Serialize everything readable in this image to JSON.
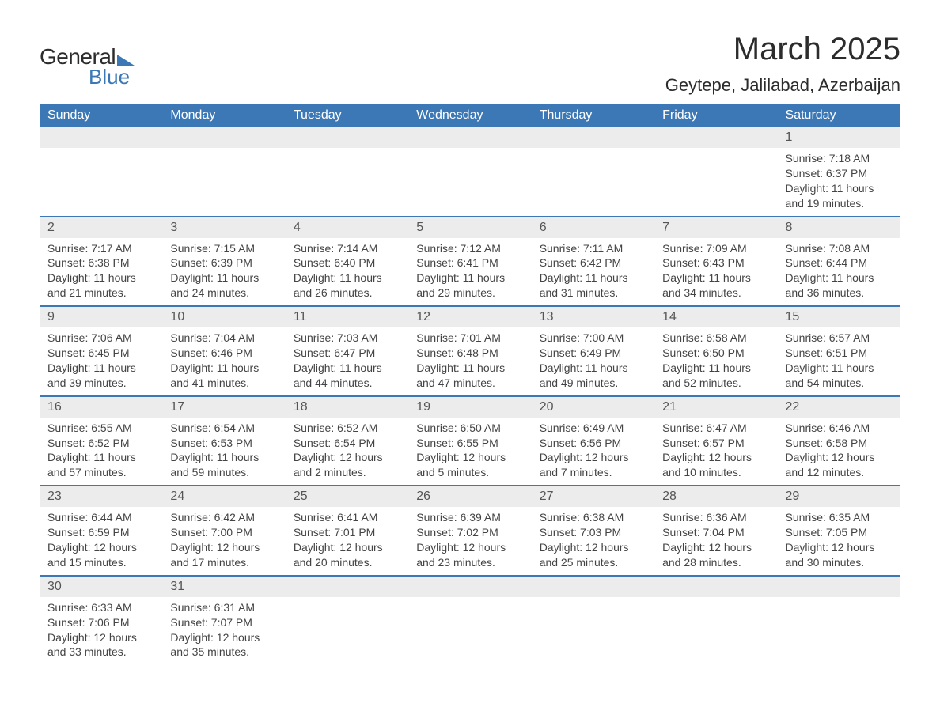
{
  "logo": {
    "word1": "General",
    "word2": "Blue"
  },
  "title": {
    "month": "March 2025",
    "location": "Geytepe, Jalilabad, Azerbaijan"
  },
  "colors": {
    "header_bg": "#3b78b5",
    "header_text": "#ffffff",
    "daynum_bg": "#ececec",
    "row_divider": "#3b78b5",
    "body_text": "#444444",
    "background": "#ffffff"
  },
  "dayHeaders": [
    "Sunday",
    "Monday",
    "Tuesday",
    "Wednesday",
    "Thursday",
    "Friday",
    "Saturday"
  ],
  "weeks": [
    [
      null,
      null,
      null,
      null,
      null,
      null,
      {
        "n": "1",
        "sr": "Sunrise: 7:18 AM",
        "ss": "Sunset: 6:37 PM",
        "d1": "Daylight: 11 hours",
        "d2": "and 19 minutes."
      }
    ],
    [
      {
        "n": "2",
        "sr": "Sunrise: 7:17 AM",
        "ss": "Sunset: 6:38 PM",
        "d1": "Daylight: 11 hours",
        "d2": "and 21 minutes."
      },
      {
        "n": "3",
        "sr": "Sunrise: 7:15 AM",
        "ss": "Sunset: 6:39 PM",
        "d1": "Daylight: 11 hours",
        "d2": "and 24 minutes."
      },
      {
        "n": "4",
        "sr": "Sunrise: 7:14 AM",
        "ss": "Sunset: 6:40 PM",
        "d1": "Daylight: 11 hours",
        "d2": "and 26 minutes."
      },
      {
        "n": "5",
        "sr": "Sunrise: 7:12 AM",
        "ss": "Sunset: 6:41 PM",
        "d1": "Daylight: 11 hours",
        "d2": "and 29 minutes."
      },
      {
        "n": "6",
        "sr": "Sunrise: 7:11 AM",
        "ss": "Sunset: 6:42 PM",
        "d1": "Daylight: 11 hours",
        "d2": "and 31 minutes."
      },
      {
        "n": "7",
        "sr": "Sunrise: 7:09 AM",
        "ss": "Sunset: 6:43 PM",
        "d1": "Daylight: 11 hours",
        "d2": "and 34 minutes."
      },
      {
        "n": "8",
        "sr": "Sunrise: 7:08 AM",
        "ss": "Sunset: 6:44 PM",
        "d1": "Daylight: 11 hours",
        "d2": "and 36 minutes."
      }
    ],
    [
      {
        "n": "9",
        "sr": "Sunrise: 7:06 AM",
        "ss": "Sunset: 6:45 PM",
        "d1": "Daylight: 11 hours",
        "d2": "and 39 minutes."
      },
      {
        "n": "10",
        "sr": "Sunrise: 7:04 AM",
        "ss": "Sunset: 6:46 PM",
        "d1": "Daylight: 11 hours",
        "d2": "and 41 minutes."
      },
      {
        "n": "11",
        "sr": "Sunrise: 7:03 AM",
        "ss": "Sunset: 6:47 PM",
        "d1": "Daylight: 11 hours",
        "d2": "and 44 minutes."
      },
      {
        "n": "12",
        "sr": "Sunrise: 7:01 AM",
        "ss": "Sunset: 6:48 PM",
        "d1": "Daylight: 11 hours",
        "d2": "and 47 minutes."
      },
      {
        "n": "13",
        "sr": "Sunrise: 7:00 AM",
        "ss": "Sunset: 6:49 PM",
        "d1": "Daylight: 11 hours",
        "d2": "and 49 minutes."
      },
      {
        "n": "14",
        "sr": "Sunrise: 6:58 AM",
        "ss": "Sunset: 6:50 PM",
        "d1": "Daylight: 11 hours",
        "d2": "and 52 minutes."
      },
      {
        "n": "15",
        "sr": "Sunrise: 6:57 AM",
        "ss": "Sunset: 6:51 PM",
        "d1": "Daylight: 11 hours",
        "d2": "and 54 minutes."
      }
    ],
    [
      {
        "n": "16",
        "sr": "Sunrise: 6:55 AM",
        "ss": "Sunset: 6:52 PM",
        "d1": "Daylight: 11 hours",
        "d2": "and 57 minutes."
      },
      {
        "n": "17",
        "sr": "Sunrise: 6:54 AM",
        "ss": "Sunset: 6:53 PM",
        "d1": "Daylight: 11 hours",
        "d2": "and 59 minutes."
      },
      {
        "n": "18",
        "sr": "Sunrise: 6:52 AM",
        "ss": "Sunset: 6:54 PM",
        "d1": "Daylight: 12 hours",
        "d2": "and 2 minutes."
      },
      {
        "n": "19",
        "sr": "Sunrise: 6:50 AM",
        "ss": "Sunset: 6:55 PM",
        "d1": "Daylight: 12 hours",
        "d2": "and 5 minutes."
      },
      {
        "n": "20",
        "sr": "Sunrise: 6:49 AM",
        "ss": "Sunset: 6:56 PM",
        "d1": "Daylight: 12 hours",
        "d2": "and 7 minutes."
      },
      {
        "n": "21",
        "sr": "Sunrise: 6:47 AM",
        "ss": "Sunset: 6:57 PM",
        "d1": "Daylight: 12 hours",
        "d2": "and 10 minutes."
      },
      {
        "n": "22",
        "sr": "Sunrise: 6:46 AM",
        "ss": "Sunset: 6:58 PM",
        "d1": "Daylight: 12 hours",
        "d2": "and 12 minutes."
      }
    ],
    [
      {
        "n": "23",
        "sr": "Sunrise: 6:44 AM",
        "ss": "Sunset: 6:59 PM",
        "d1": "Daylight: 12 hours",
        "d2": "and 15 minutes."
      },
      {
        "n": "24",
        "sr": "Sunrise: 6:42 AM",
        "ss": "Sunset: 7:00 PM",
        "d1": "Daylight: 12 hours",
        "d2": "and 17 minutes."
      },
      {
        "n": "25",
        "sr": "Sunrise: 6:41 AM",
        "ss": "Sunset: 7:01 PM",
        "d1": "Daylight: 12 hours",
        "d2": "and 20 minutes."
      },
      {
        "n": "26",
        "sr": "Sunrise: 6:39 AM",
        "ss": "Sunset: 7:02 PM",
        "d1": "Daylight: 12 hours",
        "d2": "and 23 minutes."
      },
      {
        "n": "27",
        "sr": "Sunrise: 6:38 AM",
        "ss": "Sunset: 7:03 PM",
        "d1": "Daylight: 12 hours",
        "d2": "and 25 minutes."
      },
      {
        "n": "28",
        "sr": "Sunrise: 6:36 AM",
        "ss": "Sunset: 7:04 PM",
        "d1": "Daylight: 12 hours",
        "d2": "and 28 minutes."
      },
      {
        "n": "29",
        "sr": "Sunrise: 6:35 AM",
        "ss": "Sunset: 7:05 PM",
        "d1": "Daylight: 12 hours",
        "d2": "and 30 minutes."
      }
    ],
    [
      {
        "n": "30",
        "sr": "Sunrise: 6:33 AM",
        "ss": "Sunset: 7:06 PM",
        "d1": "Daylight: 12 hours",
        "d2": "and 33 minutes."
      },
      {
        "n": "31",
        "sr": "Sunrise: 6:31 AM",
        "ss": "Sunset: 7:07 PM",
        "d1": "Daylight: 12 hours",
        "d2": "and 35 minutes."
      },
      null,
      null,
      null,
      null,
      null
    ]
  ]
}
